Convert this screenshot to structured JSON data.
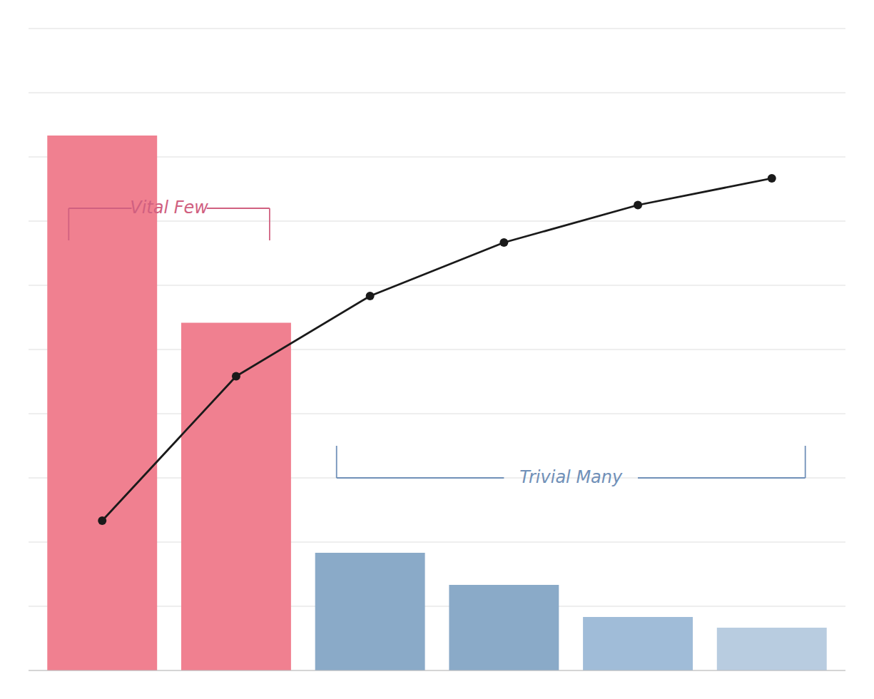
{
  "chart_data": {
    "type": "bar",
    "categories": [
      null,
      null,
      null,
      null,
      null,
      null
    ],
    "series": [
      {
        "type": "bar",
        "colors": [
          "#f08090",
          "#f08090",
          "#8aaac8",
          "#8aaac8",
          "#a0bcd8",
          "#b8cce0"
        ],
        "values": [
          100,
          65,
          22,
          16,
          10,
          8
        ]
      },
      {
        "type": "line",
        "color": "#1a1a1a",
        "marker": "circle",
        "values": [
          28,
          55,
          70,
          80,
          87,
          92
        ]
      }
    ],
    "ylim": [
      0,
      120
    ],
    "yticks": [
      0,
      12,
      24,
      36,
      48,
      60,
      72,
      84,
      96,
      108,
      120
    ],
    "grid": true,
    "tick_labels": false,
    "annotations": [
      {
        "text": "Vital Few",
        "color": "#d06080"
      },
      {
        "text": "Trivial Many",
        "color": "#7090b8"
      }
    ]
  }
}
